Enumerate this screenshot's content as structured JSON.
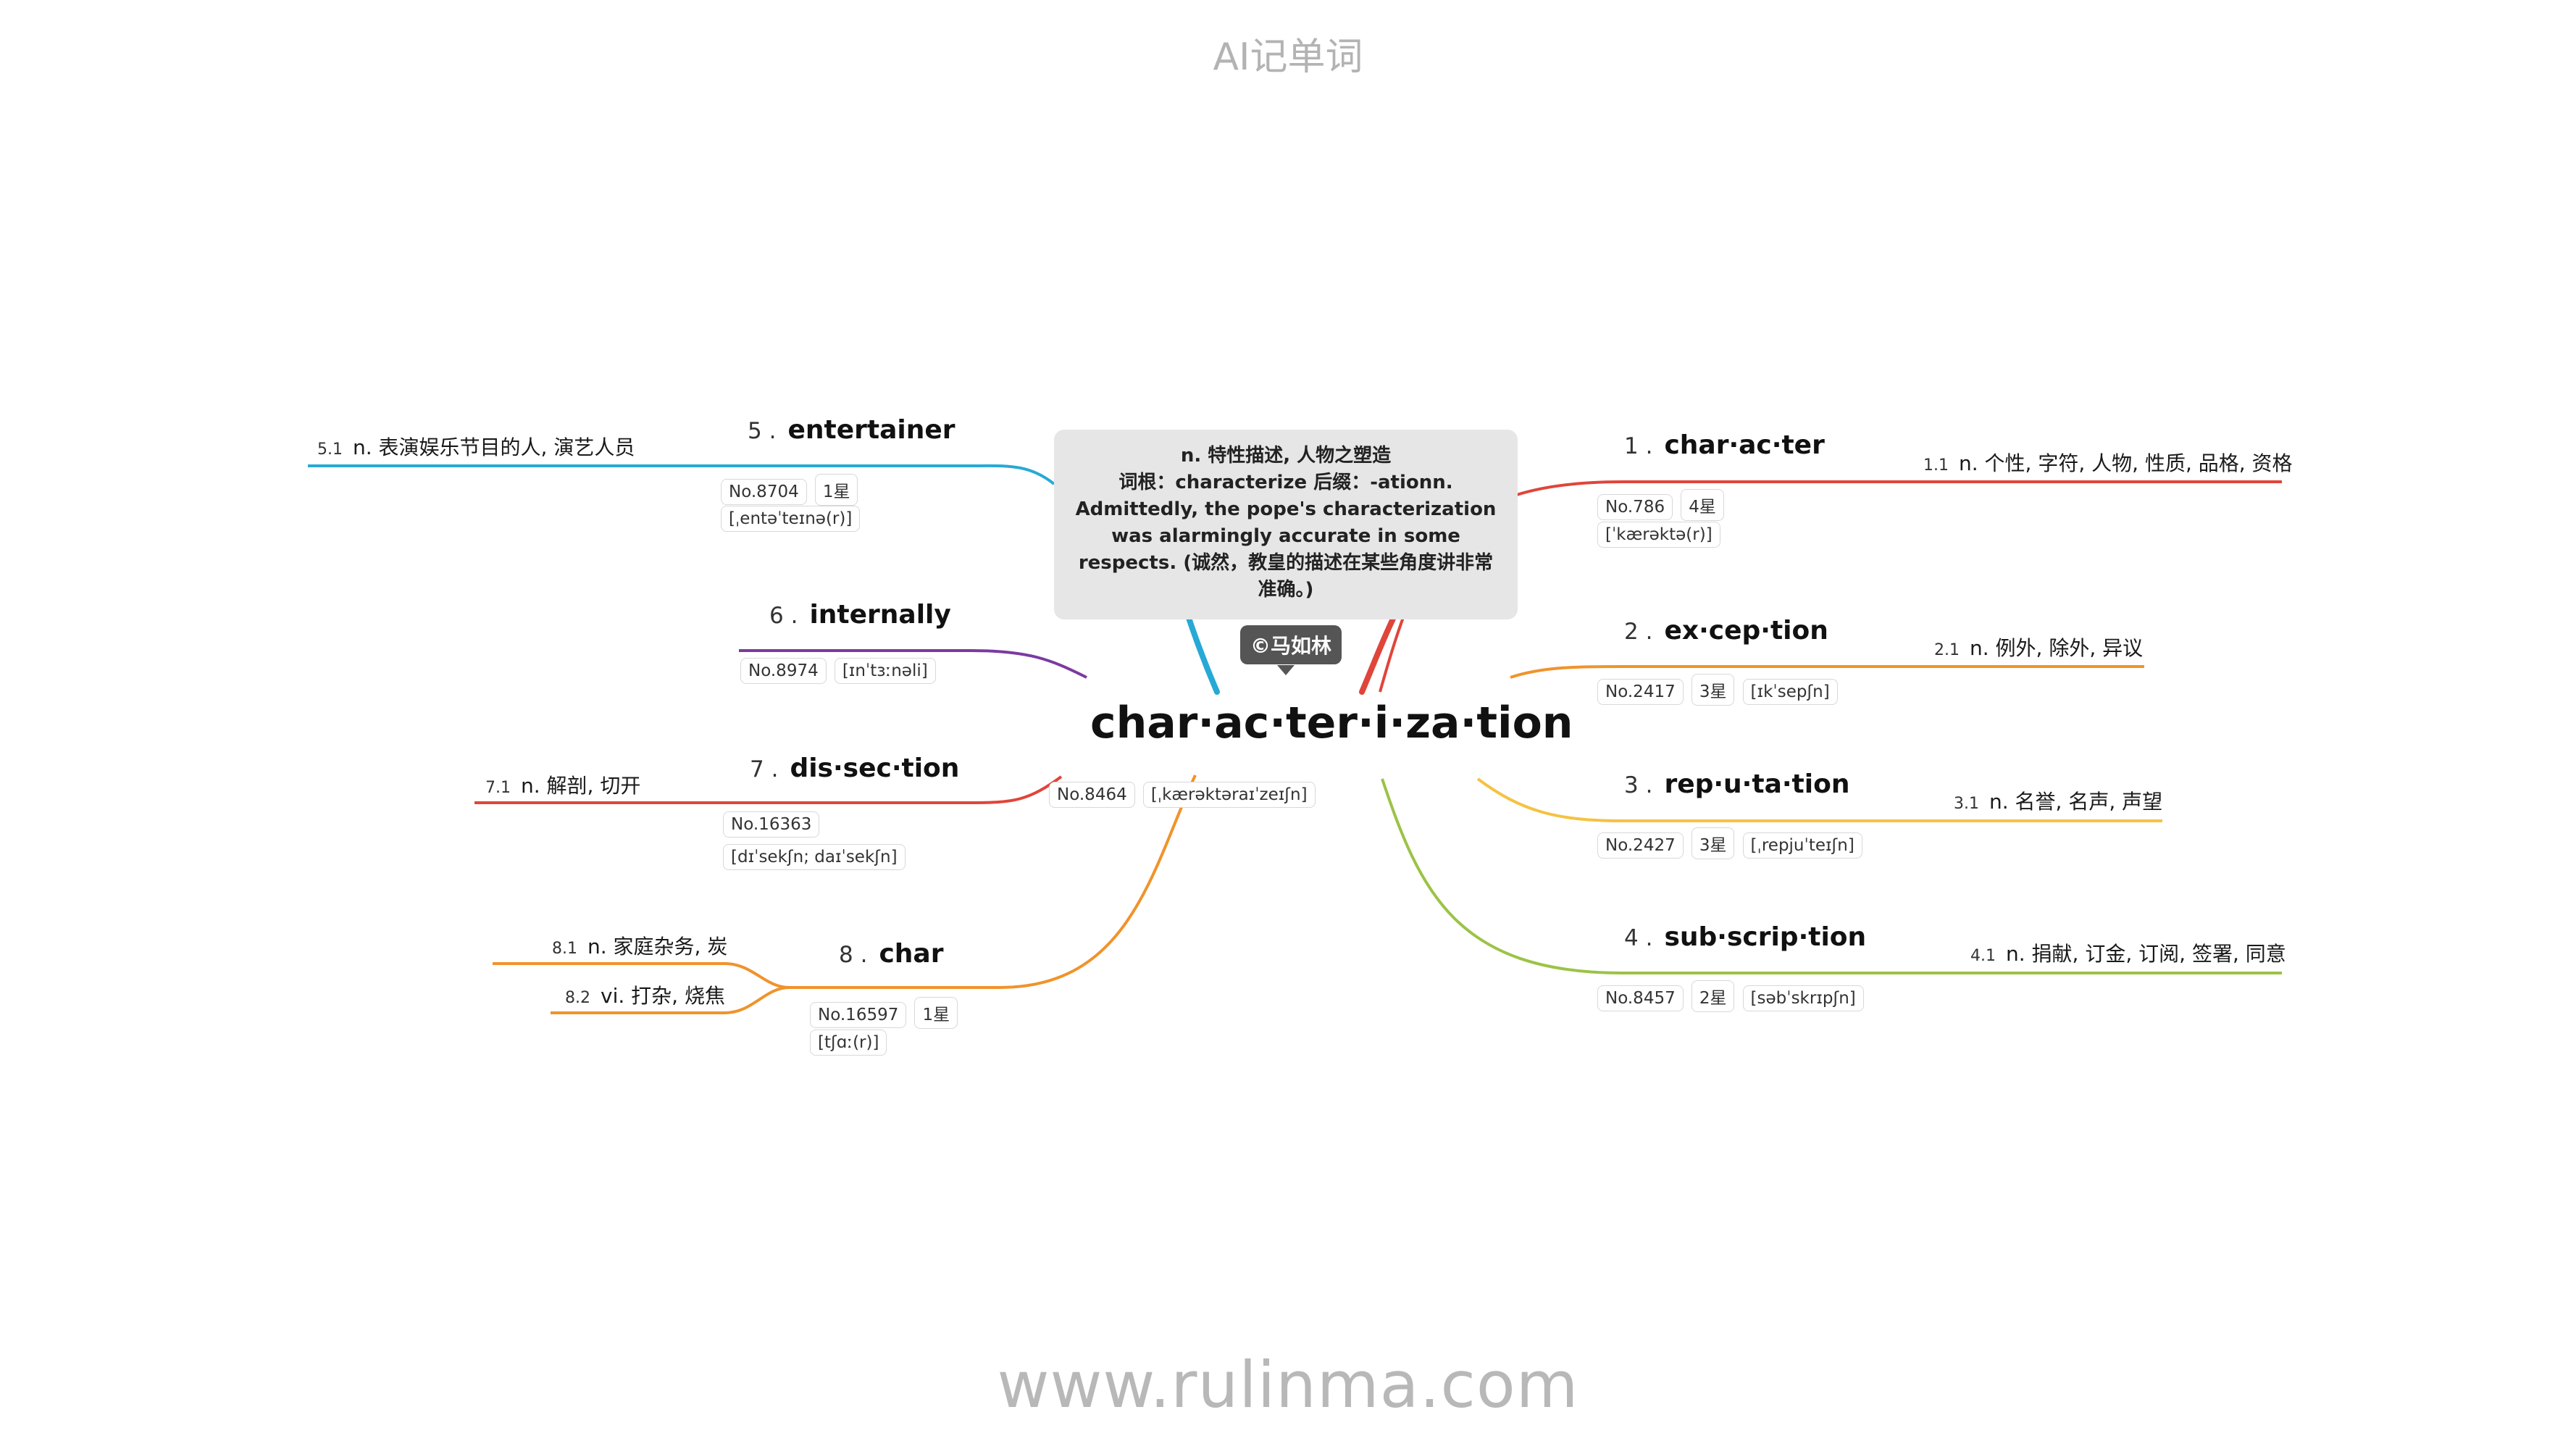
{
  "header": {
    "title": "AI记单词"
  },
  "footer": {
    "url": "www.rulinma.com"
  },
  "center": {
    "word": "char·ac·ter·i·za·tion",
    "no": "No.8464",
    "phonetic": "[ˌkærəktəraɪˈzeɪʃn]",
    "tooltip": {
      "line1": "n. 特性描述, 人物之塑造",
      "line2": "词根：characterize 后缀：-ationn.",
      "line3": "Admittedly, the pope's characterization",
      "line4": "was alarmingly accurate in some",
      "line5": "respects. (诚然，教皇的描述在某些角度讲非常",
      "line6": "准确。)"
    },
    "copyright": "©马如林"
  },
  "branches": [
    {
      "num": "1 .",
      "word": "char·ac·ter",
      "no": "No.786",
      "stars": "4星",
      "phonetic": "[ˈkærəktə(r)]",
      "color": "#e0453a",
      "defs": [
        {
          "num": "1.1",
          "text": "n. 个性, 字符, 人物, 性质, 品格, 资格"
        }
      ]
    },
    {
      "num": "2 .",
      "word": "ex·cep·tion",
      "no": "No.2417",
      "stars": "3星",
      "phonetic": "[ɪkˈsepʃn]",
      "color": "#f0932b",
      "defs": [
        {
          "num": "2.1",
          "text": "n. 例外, 除外, 异议"
        }
      ]
    },
    {
      "num": "3 .",
      "word": "rep·u·ta·tion",
      "no": "No.2427",
      "stars": "3星",
      "phonetic": "[ˌrepjuˈteɪʃn]",
      "color": "#f5c242",
      "defs": [
        {
          "num": "3.1",
          "text": "n. 名誉, 名声, 声望"
        }
      ]
    },
    {
      "num": "4 .",
      "word": "sub·scrip·tion",
      "no": "No.8457",
      "stars": "2星",
      "phonetic": "[səbˈskrɪpʃn]",
      "color": "#9bc346",
      "defs": [
        {
          "num": "4.1",
          "text": "n. 捐献, 订金, 订阅, 签署, 同意"
        }
      ]
    },
    {
      "num": "5 .",
      "word": "entertainer",
      "no": "No.8704",
      "stars": "1星",
      "phonetic": "[ˌentəˈteɪnə(r)]",
      "color": "#27a9d6",
      "defs": [
        {
          "num": "5.1",
          "text": "n. 表演娱乐节目的人, 演艺人员"
        }
      ]
    },
    {
      "num": "6 .",
      "word": "internally",
      "no": "No.8974",
      "stars": "",
      "phonetic": "[ɪnˈtɜːnəli]",
      "color": "#7b3aa0",
      "defs": []
    },
    {
      "num": "7 .",
      "word": "dis·sec·tion",
      "no": "No.16363",
      "stars": "",
      "phonetic": "[dɪˈsekʃn; daɪˈsekʃn]",
      "color": "#e0453a",
      "defs": [
        {
          "num": "7.1",
          "text": "n. 解剖, 切开"
        }
      ]
    },
    {
      "num": "8 .",
      "word": "char",
      "no": "No.16597",
      "stars": "1星",
      "phonetic": "[tʃɑː(r)]",
      "color": "#f0932b",
      "defs": [
        {
          "num": "8.1",
          "text": "n. 家庭杂务, 炭"
        },
        {
          "num": "8.2",
          "text": "vi. 打杂, 烧焦"
        }
      ]
    }
  ]
}
